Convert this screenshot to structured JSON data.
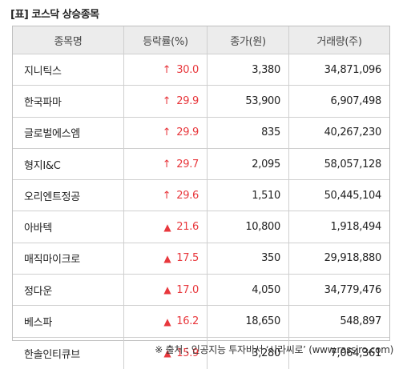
{
  "title": "[표] 코스닥 상승종목",
  "columns": [
    "종목명",
    "등락률(%)",
    "종가(원)",
    "거래량(주)"
  ],
  "rows": [
    {
      "name": "지니틱스",
      "indicator": "↑",
      "rate": "30.0",
      "price": "3,380",
      "volume": "34,871,096"
    },
    {
      "name": "한국파마",
      "indicator": "↑",
      "rate": "29.9",
      "price": "53,900",
      "volume": "6,907,498"
    },
    {
      "name": "글로벌에스엠",
      "indicator": "↑",
      "rate": "29.9",
      "price": "835",
      "volume": "40,267,230"
    },
    {
      "name": "형지I&C",
      "indicator": "↑",
      "rate": "29.7",
      "price": "2,095",
      "volume": "58,057,128"
    },
    {
      "name": "오리엔트정공",
      "indicator": "↑",
      "rate": "29.6",
      "price": "1,510",
      "volume": "50,445,104"
    },
    {
      "name": "아바텍",
      "indicator": "▲",
      "rate": "21.6",
      "price": "10,800",
      "volume": "1,918,494"
    },
    {
      "name": "매직마이크로",
      "indicator": "▲",
      "rate": "17.5",
      "price": "350",
      "volume": "29,918,880"
    },
    {
      "name": "정다운",
      "indicator": "▲",
      "rate": "17.0",
      "price": "4,050",
      "volume": "34,779,476"
    },
    {
      "name": "베스파",
      "indicator": "▲",
      "rate": "16.2",
      "price": "18,650",
      "volume": "548,897"
    },
    {
      "name": "한솔인티큐브",
      "indicator": "▲",
      "rate": "15.9",
      "price": "3,280",
      "volume": "7,064,361"
    }
  ],
  "source": "※ 출처 : 인공지능 투자비서 ‘시라씨로’ (www.rassiro.com)",
  "colors": {
    "up": "#e8383d",
    "header_bg": "#ececec",
    "border": "#cfcfcf"
  }
}
